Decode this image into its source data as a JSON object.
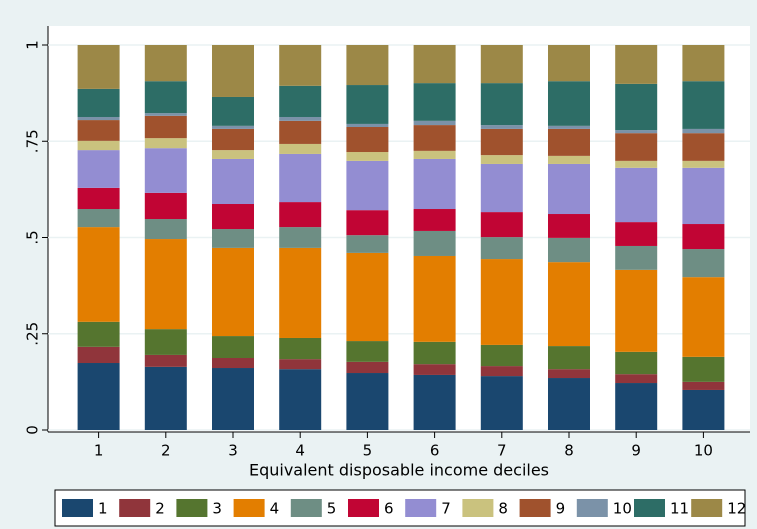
{
  "chart_data": {
    "type": "stacked_bar",
    "x_label": "Equivalent disposable income deciles",
    "categories": [
      "1",
      "2",
      "3",
      "4",
      "5",
      "6",
      "7",
      "8",
      "9",
      "10"
    ],
    "ylim": [
      0,
      1
    ],
    "yticks": [
      0,
      {
        "value": 0.25,
        "label": ".25"
      },
      {
        "value": 0.5,
        "label": ".5"
      },
      {
        "value": 0.75,
        "label": ".75"
      },
      1
    ],
    "grid": true,
    "legend": "bottom",
    "series": [
      {
        "name": "1",
        "color": "#1a476f",
        "values": [
          0.174,
          0.164,
          0.161,
          0.158,
          0.148,
          0.143,
          0.14,
          0.135,
          0.122,
          0.104
        ]
      },
      {
        "name": "2",
        "color": "#90353b",
        "values": [
          0.042,
          0.031,
          0.026,
          0.026,
          0.029,
          0.028,
          0.026,
          0.023,
          0.023,
          0.021
        ]
      },
      {
        "name": "3",
        "color": "#55752f",
        "values": [
          0.065,
          0.067,
          0.057,
          0.055,
          0.054,
          0.058,
          0.055,
          0.06,
          0.058,
          0.065
        ]
      },
      {
        "name": "4",
        "color": "#e37e00",
        "values": [
          0.246,
          0.234,
          0.229,
          0.234,
          0.229,
          0.223,
          0.223,
          0.218,
          0.213,
          0.207
        ]
      },
      {
        "name": "5",
        "color": "#6e8e84",
        "values": [
          0.047,
          0.052,
          0.049,
          0.054,
          0.046,
          0.065,
          0.057,
          0.063,
          0.062,
          0.073
        ]
      },
      {
        "name": "6",
        "color": "#c10534",
        "values": [
          0.055,
          0.068,
          0.065,
          0.065,
          0.065,
          0.057,
          0.065,
          0.062,
          0.062,
          0.065
        ]
      },
      {
        "name": "7",
        "color": "#938dd2",
        "values": [
          0.098,
          0.116,
          0.117,
          0.125,
          0.128,
          0.13,
          0.125,
          0.13,
          0.141,
          0.146
        ]
      },
      {
        "name": "8",
        "color": "#cac27e",
        "values": [
          0.024,
          0.026,
          0.023,
          0.026,
          0.023,
          0.021,
          0.023,
          0.021,
          0.018,
          0.018
        ]
      },
      {
        "name": "9",
        "color": "#a0522d",
        "values": [
          0.054,
          0.058,
          0.055,
          0.06,
          0.065,
          0.067,
          0.068,
          0.07,
          0.072,
          0.072
        ]
      },
      {
        "name": "10",
        "color": "#7b92a8",
        "values": [
          0.008,
          0.007,
          0.008,
          0.01,
          0.008,
          0.011,
          0.01,
          0.008,
          0.008,
          0.011
        ]
      },
      {
        "name": "11",
        "color": "#2d6d66",
        "values": [
          0.073,
          0.083,
          0.075,
          0.081,
          0.101,
          0.098,
          0.109,
          0.116,
          0.12,
          0.124
        ]
      },
      {
        "name": "12",
        "color": "#9c8847",
        "values": [
          0.114,
          0.094,
          0.135,
          0.106,
          0.104,
          0.099,
          0.099,
          0.094,
          0.101,
          0.094
        ]
      }
    ]
  }
}
